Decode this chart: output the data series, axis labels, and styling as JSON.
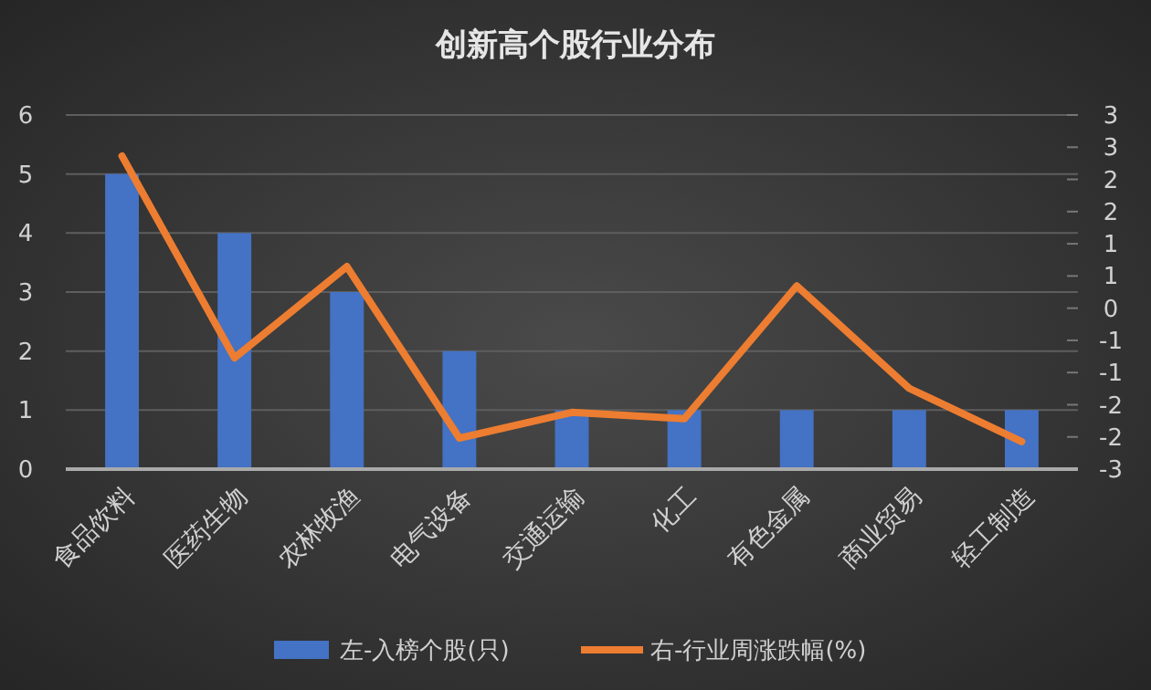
{
  "chart_data": {
    "type": "bar",
    "title": "创新高个股行业分布",
    "categories": [
      "食品饮料",
      "医药生物",
      "农林牧渔",
      "电气设备",
      "交通运输",
      "化工",
      "有色金属",
      "商业贸易",
      "轻工制造"
    ],
    "series": [
      {
        "name": "左-入榜个股(只)",
        "color": "#4472c4",
        "values": [
          5,
          4,
          3,
          2,
          1,
          1,
          1,
          1,
          1
        ]
      },
      {
        "name": "右-行业周涨跌幅(%)",
        "color": "#ed7d31",
        "type": "line",
        "axis": "y2",
        "values": [
          2.6,
          -0.85,
          0.71,
          -2.22,
          -1.78,
          -1.89,
          0.38,
          -1.37,
          -2.28
        ]
      }
    ],
    "ylim": [
      0,
      6
    ],
    "yticks": [
      0,
      1,
      2,
      3,
      4,
      5,
      6
    ],
    "y2lim": [
      -2.75,
      3.3
    ],
    "y2ticks": [
      {
        "value": -2.75,
        "label": "-3"
      },
      {
        "value": -2.2,
        "label": "-2"
      },
      {
        "value": -1.65,
        "label": "-2"
      },
      {
        "value": -1.1,
        "label": "-1"
      },
      {
        "value": -0.55,
        "label": "-1"
      },
      {
        "value": 0,
        "label": "0"
      },
      {
        "value": 0.55,
        "label": "1"
      },
      {
        "value": 1.1,
        "label": "1"
      },
      {
        "value": 1.65,
        "label": "2"
      },
      {
        "value": 2.2,
        "label": "2"
      },
      {
        "value": 2.75,
        "label": "3"
      },
      {
        "value": 3.3,
        "label": "3"
      }
    ],
    "grid": "y",
    "legend": "bottom",
    "marker": "none",
    "line_style": "solid"
  }
}
